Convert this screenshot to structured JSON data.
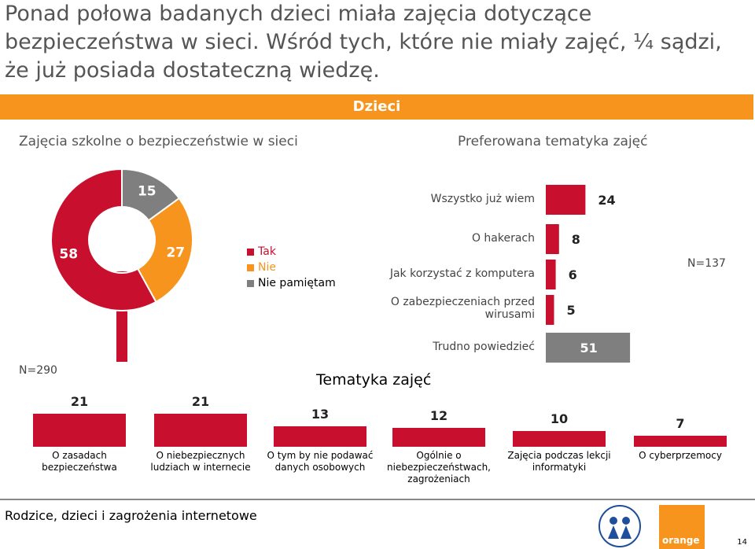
{
  "headline": "Ponad połowa badanych dzieci miała zajęcia dotyczące bezpieczeństwa w sieci. Wśród tych, które nie miały zajęć, ¼ sądzi, że już posiada dostateczną wiedzę.",
  "banner": "Dzieci",
  "left_subtitle": "Zajęcia szkolne o bezpieczeństwie w sieci",
  "right_subtitle": "Preferowana tematyka zajęć",
  "colors": {
    "red": "#c8102e",
    "orange": "#f7941d",
    "gray": "#7f7f7f",
    "banner": "#f7941d"
  },
  "chart_data": [
    {
      "type": "pie",
      "labels": [
        "Tak",
        "Nie",
        "Nie pamiętam"
      ],
      "values": [
        58,
        27,
        15
      ],
      "colors": [
        "#c8102e",
        "#f7941d",
        "#7f7f7f"
      ],
      "legend": "right"
    },
    {
      "type": "bar",
      "orientation": "horizontal",
      "categories": [
        "Wszystko już wiem",
        "O hakerach",
        "Jak korzystać z komputera",
        "O zabezpieczeniach przed wirusami",
        "Trudno powiedzieć"
      ],
      "values": [
        24,
        8,
        6,
        5,
        51
      ],
      "colors": [
        "#c8102e",
        "#c8102e",
        "#c8102e",
        "#c8102e",
        "#7f7f7f"
      ],
      "n_label": "N=137"
    },
    {
      "type": "bar",
      "title": "Tematyka zajęć",
      "categories": [
        "O zasadach bezpieczeństwa",
        "O niebezpiecznych ludziach w internecie",
        "O tym by nie podawać danych osobowych",
        "Ogólnie o niebezpieczeństwach, zagrożeniach",
        "Zajęcia podczas lekcji informatyki",
        "O cyberprzemocy"
      ],
      "values": [
        21,
        21,
        13,
        12,
        10,
        7
      ],
      "n_label": "N=290"
    }
  ],
  "footer": "Rodzice, dzieci i zagrożenia internetowe",
  "page_number": "14",
  "logo_orange": "orange",
  "logo_fundacja": "FUNDACJA DZIECI NICZYJE"
}
